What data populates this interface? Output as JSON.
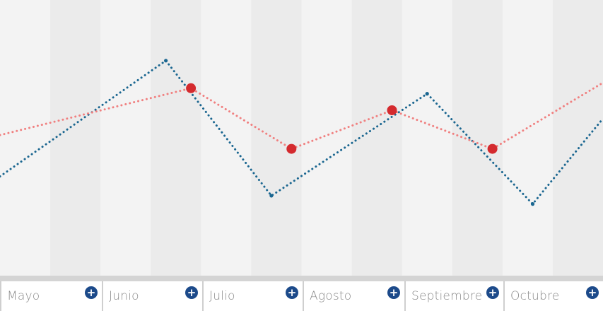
{
  "chart_data": {
    "type": "line",
    "categories": [
      "Mayo",
      "Junio",
      "Julio",
      "Agosto",
      "Septiembre",
      "Octubre"
    ],
    "series": [
      {
        "color": "#1a6690",
        "x": [
          0.0,
          1.65,
          2.7,
          4.25,
          5.3,
          6.0
        ],
        "values": [
          3.6,
          7.8,
          2.9,
          6.6,
          2.6,
          5.7
        ]
      },
      {
        "color": "#f08080",
        "marker_color": "#d42a2e",
        "x": [
          0.0,
          1.9,
          2.9,
          3.9,
          4.9,
          6.0
        ],
        "values": [
          5.1,
          6.8,
          4.6,
          6.0,
          4.6,
          7.0
        ]
      }
    ],
    "ylim": [
      0,
      10
    ],
    "xlim": [
      0,
      6
    ],
    "grid": "alternating-bands"
  },
  "timeline": {
    "items": [
      {
        "label": "Mayo",
        "icon": "plus-icon"
      },
      {
        "label": "Junio",
        "icon": "plus-icon"
      },
      {
        "label": "Julio",
        "icon": "plus-icon"
      },
      {
        "label": "Agosto",
        "icon": "plus-icon"
      },
      {
        "label": "Septiembre",
        "icon": "plus-icon"
      },
      {
        "label": "Octubre",
        "icon": "plus-icon"
      }
    ],
    "icon_symbol": "+",
    "icon_color": "#1c4a8a"
  },
  "colors": {
    "band_light": "#f3f3f3",
    "band_dark": "#ebebeb",
    "axis_strip": "#d4d4d4"
  }
}
